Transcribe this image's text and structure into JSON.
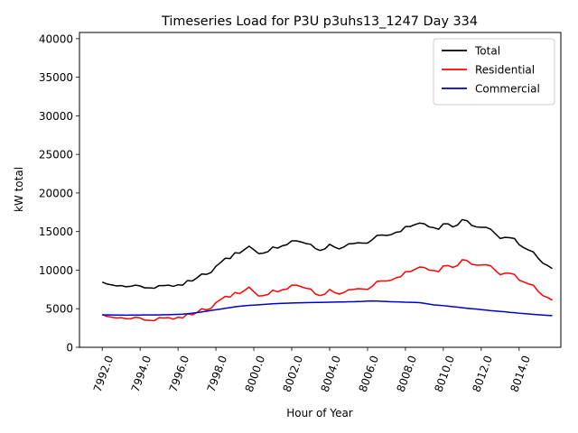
{
  "chart_data": {
    "type": "line",
    "title": "Timeseries Load for P3U p3uhs13_1247  Day 334",
    "xlabel": "Hour of Year",
    "ylabel": "kW total",
    "xlim": [
      7990.8,
      8016.2
    ],
    "ylim": [
      0,
      40800
    ],
    "xticks": [
      7992,
      7994,
      7996,
      7998,
      8000,
      8002,
      8004,
      8006,
      8008,
      8010,
      8012,
      8014
    ],
    "xtick_labels": [
      "7992.0",
      "7994.0",
      "7996.0",
      "7998.0",
      "8000.0",
      "8002.0",
      "8004.0",
      "8006.0",
      "8008.0",
      "8010.0",
      "8012.0",
      "8014.0"
    ],
    "yticks": [
      0,
      5000,
      10000,
      15000,
      20000,
      25000,
      30000,
      35000,
      40000
    ],
    "ytick_labels": [
      "0",
      "5000",
      "10000",
      "15000",
      "20000",
      "25000",
      "30000",
      "35000",
      "40000"
    ],
    "legend_position": "top-right",
    "grid": false,
    "x": [
      7992.0,
      7992.25,
      7992.5,
      7992.75,
      7993.0,
      7993.25,
      7993.5,
      7993.75,
      7994.0,
      7994.25,
      7994.5,
      7994.75,
      7995.0,
      7995.25,
      7995.5,
      7995.75,
      7996.0,
      7996.25,
      7996.5,
      7996.75,
      7997.0,
      7997.25,
      7997.5,
      7997.75,
      7998.0,
      7998.25,
      7998.5,
      7998.75,
      7999.0,
      7999.25,
      7999.5,
      7999.75,
      8000.0,
      8000.25,
      8000.5,
      8000.75,
      8001.0,
      8001.25,
      8001.5,
      8001.75,
      8002.0,
      8002.25,
      8002.5,
      8002.75,
      8003.0,
      8003.25,
      8003.5,
      8003.75,
      8004.0,
      8004.25,
      8004.5,
      8004.75,
      8005.0,
      8005.25,
      8005.5,
      8005.75,
      8006.0,
      8006.25,
      8006.5,
      8006.75,
      8007.0,
      8007.25,
      8007.5,
      8007.75,
      8008.0,
      8008.25,
      8008.5,
      8008.75,
      8009.0,
      8009.25,
      8009.5,
      8009.75,
      8010.0,
      8010.25,
      8010.5,
      8010.75,
      8011.0,
      8011.25,
      8011.5,
      8011.75,
      8012.0,
      8012.25,
      8012.5,
      8012.75,
      8013.0,
      8013.25,
      8013.5,
      8013.75,
      8014.0,
      8014.25,
      8014.5,
      8014.75,
      8015.0,
      8015.25,
      8015.5,
      8015.75
    ],
    "series": [
      {
        "name": "Total",
        "color": "#000000",
        "values": [
          8450,
          8200,
          8100,
          7950,
          8000,
          7850,
          7900,
          8050,
          7950,
          7700,
          7700,
          7650,
          8000,
          8000,
          8050,
          7900,
          8100,
          8050,
          8650,
          8600,
          9000,
          9500,
          9450,
          9700,
          10500,
          11000,
          11550,
          11500,
          12250,
          12200,
          12650,
          13100,
          12650,
          12150,
          12200,
          12400,
          13000,
          12850,
          13150,
          13300,
          13800,
          13800,
          13650,
          13450,
          13350,
          12800,
          12550,
          12750,
          13350,
          13000,
          12750,
          13000,
          13400,
          13450,
          13550,
          13500,
          13500,
          13950,
          14500,
          14550,
          14500,
          14600,
          14900,
          15000,
          15650,
          15650,
          15900,
          16100,
          16000,
          15600,
          15500,
          15300,
          16000,
          16000,
          15600,
          15850,
          16550,
          16400,
          15800,
          15600,
          15550,
          15550,
          15300,
          14700,
          14100,
          14250,
          14200,
          14100,
          13300,
          12900,
          12600,
          12350,
          11550,
          10900,
          10600,
          10200
        ]
      },
      {
        "name": "Residential",
        "color": "#ff0000",
        "values": [
          4250,
          4000,
          3900,
          3800,
          3850,
          3700,
          3700,
          3900,
          3800,
          3500,
          3500,
          3450,
          3850,
          3800,
          3850,
          3650,
          3900,
          3800,
          4350,
          4200,
          4500,
          5000,
          4850,
          5050,
          5800,
          6200,
          6600,
          6500,
          7100,
          6950,
          7350,
          7800,
          7200,
          6650,
          6700,
          6850,
          7400,
          7200,
          7450,
          7550,
          8050,
          8050,
          7850,
          7650,
          7550,
          6900,
          6700,
          6900,
          7500,
          7100,
          6900,
          7100,
          7450,
          7500,
          7600,
          7550,
          7500,
          7900,
          8550,
          8600,
          8600,
          8700,
          9000,
          9150,
          9800,
          9800,
          10100,
          10400,
          10350,
          10000,
          9950,
          9800,
          10550,
          10600,
          10350,
          10600,
          11350,
          11250,
          10750,
          10650,
          10650,
          10700,
          10550,
          9950,
          9400,
          9600,
          9600,
          9450,
          8700,
          8450,
          8200,
          8050,
          7250,
          6700,
          6450,
          6100
        ]
      },
      {
        "name": "Commercial",
        "color": "#0000cc",
        "values": [
          4200,
          4200,
          4200,
          4180,
          4180,
          4170,
          4180,
          4180,
          4180,
          4200,
          4200,
          4200,
          4200,
          4220,
          4230,
          4250,
          4270,
          4300,
          4350,
          4420,
          4500,
          4580,
          4680,
          4780,
          4860,
          4950,
          5050,
          5150,
          5250,
          5320,
          5380,
          5430,
          5470,
          5510,
          5560,
          5600,
          5640,
          5670,
          5700,
          5720,
          5740,
          5760,
          5770,
          5780,
          5800,
          5810,
          5820,
          5830,
          5850,
          5860,
          5870,
          5880,
          5900,
          5910,
          5930,
          5950,
          5990,
          6000,
          5990,
          5960,
          5930,
          5910,
          5890,
          5870,
          5840,
          5830,
          5810,
          5790,
          5700,
          5600,
          5500,
          5450,
          5400,
          5330,
          5260,
          5200,
          5130,
          5060,
          5000,
          4950,
          4880,
          4820,
          4750,
          4700,
          4650,
          4600,
          4530,
          4480,
          4420,
          4370,
          4320,
          4270,
          4220,
          4180,
          4140,
          4100
        ]
      }
    ]
  }
}
